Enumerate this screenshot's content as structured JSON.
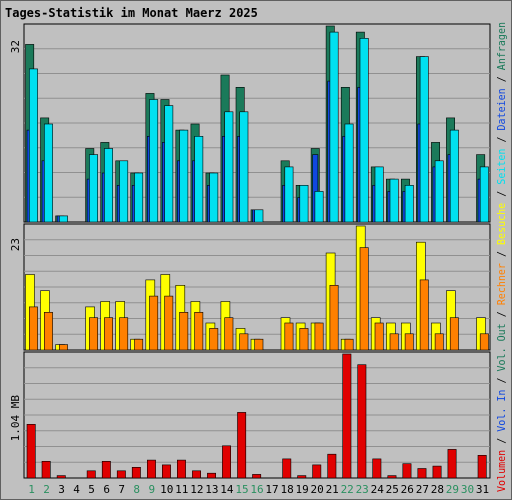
{
  "chart_data": [
    {
      "type": "bar",
      "title": "Tages-Statistik im Monat Maerz 2025",
      "categories": [
        "1",
        "2",
        "3",
        "4",
        "5",
        "6",
        "7",
        "8",
        "9",
        "10",
        "11",
        "12",
        "13",
        "14",
        "15",
        "16",
        "17",
        "18",
        "19",
        "20",
        "21",
        "22",
        "23",
        "24",
        "25",
        "26",
        "27",
        "28",
        "29",
        "30",
        "31"
      ],
      "weekend_days": [
        "1",
        "2",
        "8",
        "9",
        "15",
        "16",
        "22",
        "23",
        "29",
        "30"
      ],
      "ylabel_max": "32",
      "ylim": [
        0,
        32
      ],
      "series": [
        {
          "name": "Anfragen",
          "color": "#1b7a5a",
          "values": [
            29,
            17,
            1,
            0,
            12,
            13,
            10,
            8,
            21,
            20,
            15,
            16,
            8,
            24,
            22,
            2,
            0,
            10,
            6,
            12,
            32,
            22,
            31,
            9,
            7,
            7,
            27,
            13,
            17,
            0,
            11
          ]
        },
        {
          "name": "Dateien",
          "color": "#1048e0",
          "values": [
            15,
            10,
            1,
            0,
            7,
            8,
            6,
            6,
            14,
            13,
            10,
            10,
            6,
            14,
            14,
            2,
            0,
            6,
            4,
            11,
            23,
            14,
            22,
            6,
            5,
            5,
            16,
            9,
            11,
            0,
            7
          ]
        },
        {
          "name": "Seiten",
          "color": "#00e0f0",
          "values": [
            25,
            16,
            1,
            0,
            11,
            12,
            10,
            8,
            20,
            19,
            15,
            14,
            8,
            18,
            18,
            2,
            0,
            9,
            6,
            5,
            31,
            16,
            30,
            9,
            7,
            6,
            27,
            10,
            15,
            0,
            9
          ]
        }
      ]
    },
    {
      "type": "bar",
      "ylabel_max": "23",
      "ylim": [
        0,
        23
      ],
      "series": [
        {
          "name": "Besuche",
          "color": "#ffff00",
          "values": [
            14,
            11,
            1,
            0,
            8,
            9,
            9,
            2,
            13,
            14,
            12,
            9,
            5,
            9,
            4,
            2,
            0,
            6,
            5,
            5,
            18,
            2,
            23,
            6,
            5,
            5,
            20,
            5,
            11,
            0,
            6
          ]
        },
        {
          "name": "Rechner",
          "color": "#ff8000",
          "values": [
            8,
            7,
            1,
            0,
            6,
            6,
            6,
            2,
            10,
            10,
            7,
            7,
            4,
            6,
            3,
            2,
            0,
            5,
            4,
            5,
            12,
            2,
            19,
            5,
            3,
            3,
            13,
            3,
            6,
            0,
            3
          ]
        }
      ]
    },
    {
      "type": "bar",
      "ylabel_max": "1.04 MB",
      "ylim": [
        0,
        1.04
      ],
      "series": [
        {
          "name": "Volumen",
          "color": "#e00000",
          "values": [
            0.45,
            0.14,
            0.02,
            0,
            0.06,
            0.14,
            0.06,
            0.09,
            0.15,
            0.11,
            0.15,
            0.06,
            0.04,
            0.27,
            0.55,
            0.03,
            0,
            0.16,
            0.02,
            0.11,
            0.2,
            1.04,
            0.95,
            0.16,
            0.02,
            0.12,
            0.08,
            0.1,
            0.24,
            0,
            0.19
          ]
        }
      ]
    }
  ],
  "right_legend": [
    {
      "text": "Volumen",
      "color": "#e00000"
    },
    {
      "text": "Vol. In",
      "color": "#1048e0"
    },
    {
      "text": "Vol. Out",
      "color": "#1b7a5a"
    },
    {
      "text": "Rechner",
      "color": "#ff8000"
    },
    {
      "text": "Besuche",
      "color": "#ffff00"
    },
    {
      "text": "Seiten",
      "color": "#00e0f0"
    },
    {
      "text": "Dateien",
      "color": "#1048e0"
    },
    {
      "text": "Anfragen",
      "color": "#1b7a5a"
    }
  ],
  "colors": {
    "title": "#0000ff",
    "plot_bg": "#c0c0c0",
    "grid": "#909090",
    "border": "#000000",
    "day_label": "#000000",
    "weekend_label": "#2a9060",
    "separator": "#000000"
  }
}
